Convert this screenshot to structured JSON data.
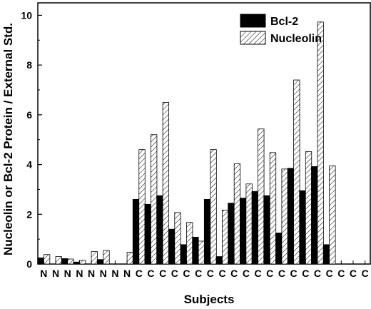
{
  "chart_data": {
    "type": "bar",
    "xlabel": "Subjects",
    "ylabel": "Nucleolin or Bcl-2 Protein / External Std.",
    "ylim": [
      0,
      10.5
    ],
    "yticks": [
      0,
      2,
      4,
      6,
      8,
      10
    ],
    "grid": false,
    "legend_position": "top-right",
    "categories": [
      "N",
      "N",
      "N",
      "N",
      "N",
      "N",
      "N",
      "N",
      "C",
      "C",
      "C",
      "C",
      "C",
      "C",
      "C",
      "C",
      "C",
      "C",
      "C",
      "C",
      "C",
      "C",
      "C",
      "C",
      "C",
      "C",
      "C",
      "C"
    ],
    "series": [
      {
        "name": "Bcl-2",
        "fill": "solid",
        "color": "#000000",
        "values": [
          0.25,
          0.0,
          0.22,
          0.08,
          0.0,
          0.18,
          0.0,
          0.0,
          2.6,
          2.4,
          2.75,
          1.4,
          0.78,
          1.08,
          2.6,
          0.3,
          2.45,
          2.65,
          2.92,
          2.75,
          1.25,
          3.85,
          2.95,
          3.92,
          0.78,
          0.0,
          0.0,
          0.0
        ]
      },
      {
        "name": "Nucleolin",
        "fill": "hatched",
        "color": "#000000",
        "values": [
          0.38,
          0.3,
          0.2,
          0.15,
          0.5,
          0.55,
          0.0,
          0.47,
          4.6,
          5.2,
          6.5,
          2.07,
          1.67,
          0.92,
          4.6,
          2.17,
          4.03,
          3.22,
          5.43,
          4.48,
          3.82,
          7.4,
          4.52,
          9.73,
          3.95,
          0.0,
          0.0,
          0.0
        ]
      }
    ]
  }
}
